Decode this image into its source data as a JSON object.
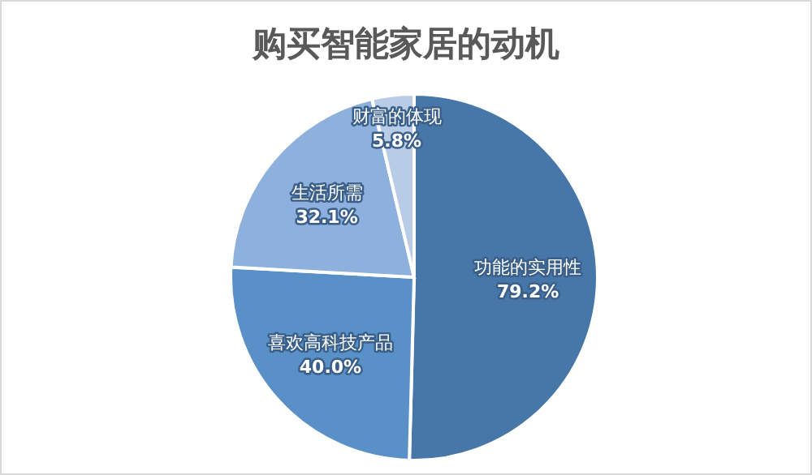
{
  "chart_data": {
    "type": "pie",
    "title": "购买智能家居的动机",
    "categories": [
      "功能的实用性",
      "喜欢高科技产品",
      "生活所需",
      "财富的体现"
    ],
    "values": [
      79.2,
      40.0,
      32.1,
      5.8
    ],
    "value_labels": [
      "79.2%",
      "40.0%",
      "32.1%",
      "5.8%"
    ],
    "colors": [
      "#4677a8",
      "#5990c8",
      "#8db0dc",
      "#b8cce6"
    ],
    "legend": false
  }
}
